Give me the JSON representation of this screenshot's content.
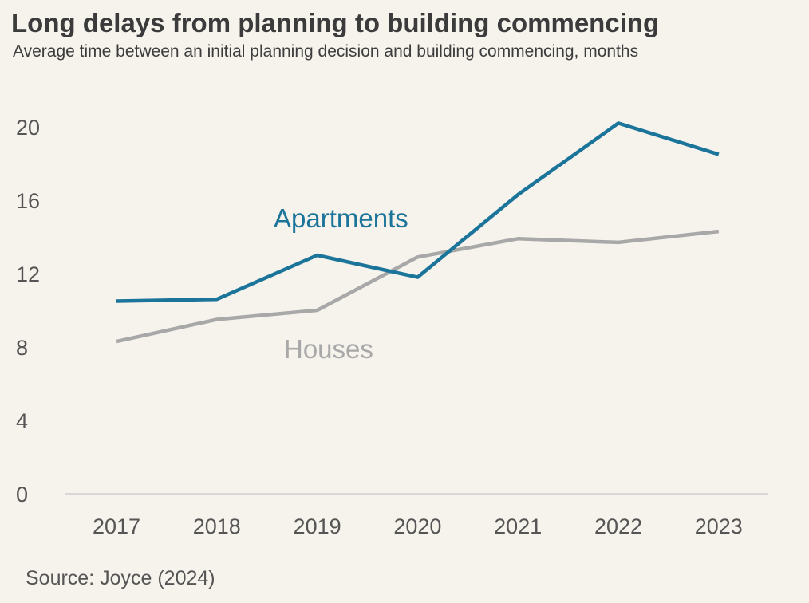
{
  "chart_data": {
    "type": "line",
    "title": "Long delays from planning to building commencing",
    "subtitle": "Average time between an initial planning decision and building commencing, months",
    "x": [
      "2017",
      "2018",
      "2019",
      "2020",
      "2021",
      "2022",
      "2023"
    ],
    "yticks": [
      "0",
      "4",
      "8",
      "12",
      "16",
      "20"
    ],
    "ylim": [
      0,
      21
    ],
    "series": [
      {
        "name": "Apartments",
        "color": "#1b7499",
        "values": [
          10.5,
          10.6,
          13.0,
          11.8,
          16.3,
          20.2,
          18.5
        ]
      },
      {
        "name": "Houses",
        "color": "#a8a8a8",
        "values": [
          8.3,
          9.5,
          10.0,
          12.9,
          13.9,
          13.7,
          14.3
        ]
      }
    ],
    "source": "Source: Joyce (2024)",
    "grid": false
  }
}
